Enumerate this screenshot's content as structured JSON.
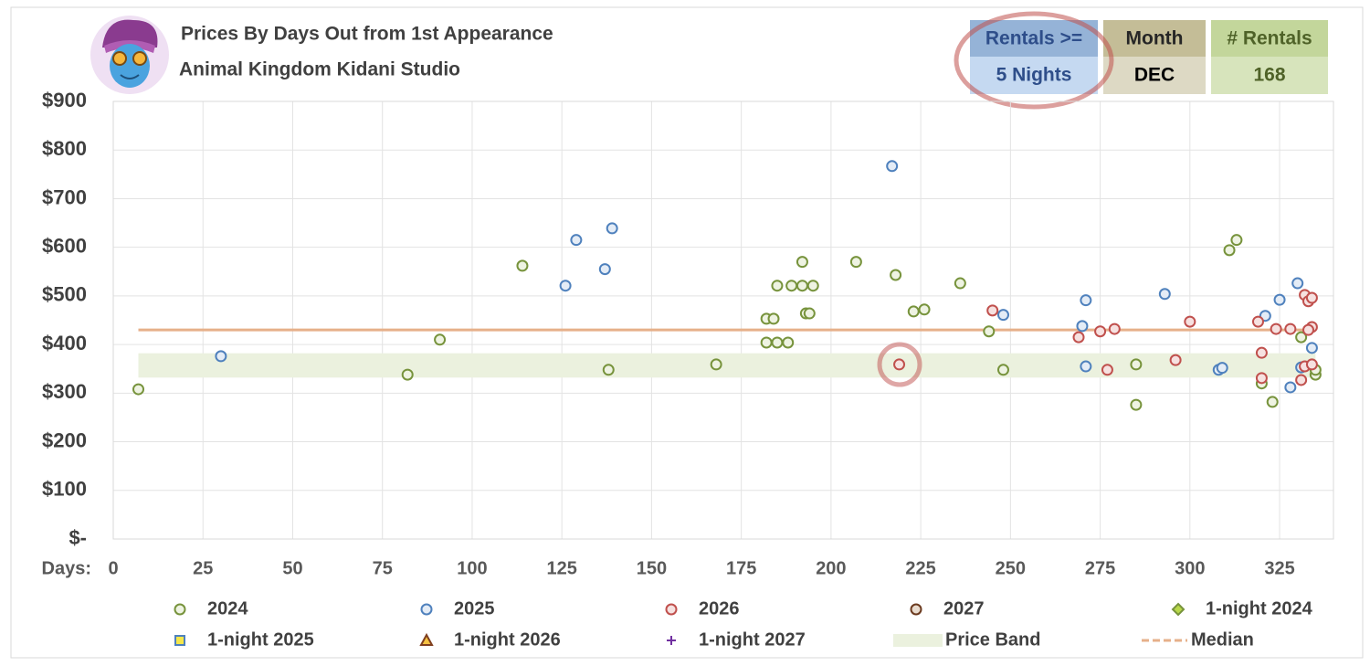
{
  "chart_data": {
    "type": "scatter",
    "title": "Prices By Days Out from 1st Appearance",
    "subtitle": "Animal Kingdom Kidani Studio",
    "filters": [
      {
        "label": "Rentals >=",
        "value": "5 Nights"
      },
      {
        "label": "Month",
        "value": "DEC"
      },
      {
        "label": "# Rentals",
        "value": 168
      }
    ],
    "x_label": "Days:",
    "xlim": [
      0,
      340
    ],
    "xticks": [
      0,
      25,
      50,
      75,
      100,
      125,
      150,
      175,
      200,
      225,
      250,
      275,
      300,
      325
    ],
    "ylim": [
      0,
      900
    ],
    "yticks": [
      {
        "value": 0,
        "label": "$-"
      },
      {
        "value": 100,
        "label": "$100"
      },
      {
        "value": 200,
        "label": "$200"
      },
      {
        "value": 300,
        "label": "$300"
      },
      {
        "value": 400,
        "label": "$400"
      },
      {
        "value": 500,
        "label": "$500"
      },
      {
        "value": 600,
        "label": "$600"
      },
      {
        "value": 700,
        "label": "$700"
      },
      {
        "value": 800,
        "label": "$800"
      },
      {
        "value": 900,
        "label": "$900"
      }
    ],
    "grid": true,
    "series": [
      {
        "name": "2024",
        "marker": "circle",
        "color": "#77933c",
        "fill": "#eef3e2",
        "x": [
          7,
          82,
          91,
          114,
          138,
          168,
          182,
          184,
          182,
          185,
          188,
          185,
          189,
          192,
          192,
          195,
          193,
          194,
          207,
          218,
          223,
          226,
          236,
          244,
          248,
          285,
          285,
          311,
          313,
          323,
          320,
          331,
          335,
          335
        ],
        "values": [
          308,
          338,
          410,
          562,
          348,
          359,
          453,
          453,
          404,
          404,
          404,
          521,
          521,
          570,
          521,
          521,
          464,
          464,
          570,
          543,
          468,
          472,
          526,
          427,
          348,
          359,
          276,
          594,
          615,
          282,
          320,
          415,
          338,
          348
        ]
      },
      {
        "name": "2025",
        "marker": "circle",
        "color": "#4f81bd",
        "fill": "#e4ecf6",
        "x": [
          30,
          126,
          129,
          137,
          139,
          217,
          248,
          270,
          271,
          271,
          293,
          308,
          309,
          321,
          325,
          328,
          330,
          331,
          334
        ],
        "values": [
          376,
          521,
          615,
          555,
          639,
          767,
          461,
          438,
          491,
          355,
          504,
          348,
          352,
          459,
          492,
          312,
          526,
          353,
          393
        ]
      },
      {
        "name": "2026",
        "marker": "circle",
        "color": "#c0504d",
        "fill": "#f6e1e0",
        "x": [
          219,
          245,
          269,
          275,
          277,
          279,
          296,
          300,
          319,
          320,
          320,
          324,
          328,
          331,
          332,
          332,
          333,
          334,
          334,
          334,
          333
        ],
        "values": [
          359,
          470,
          415,
          427,
          348,
          432,
          368,
          447,
          447,
          383,
          331,
          432,
          432,
          327,
          355,
          502,
          489,
          496,
          436,
          359,
          430
        ]
      },
      {
        "name": "2027",
        "marker": "circle",
        "color": "#6b3a1f",
        "fill": "#e9dccf",
        "x": [],
        "values": []
      },
      {
        "name": "1-night 2024",
        "marker": "diamond",
        "color": "#77933c",
        "fill": "#b8d84a",
        "x": [],
        "values": []
      },
      {
        "name": "1-night 2025",
        "marker": "square",
        "color": "#4f81bd",
        "fill": "#f5e74a",
        "x": [],
        "values": []
      },
      {
        "name": "1-night 2026",
        "marker": "triangle",
        "color": "#7f3f1f",
        "fill": "#f5c242",
        "x": [],
        "values": []
      },
      {
        "name": "1-night 2027",
        "marker": "plus",
        "color": "#7030a0",
        "fill": "#7030a0",
        "x": [],
        "values": []
      }
    ],
    "price_band": {
      "name": "Price Band",
      "low": 332,
      "high": 382,
      "color": "#ebf1de"
    },
    "median": {
      "name": "Median",
      "value": 430,
      "color": "#e6b08a"
    }
  }
}
